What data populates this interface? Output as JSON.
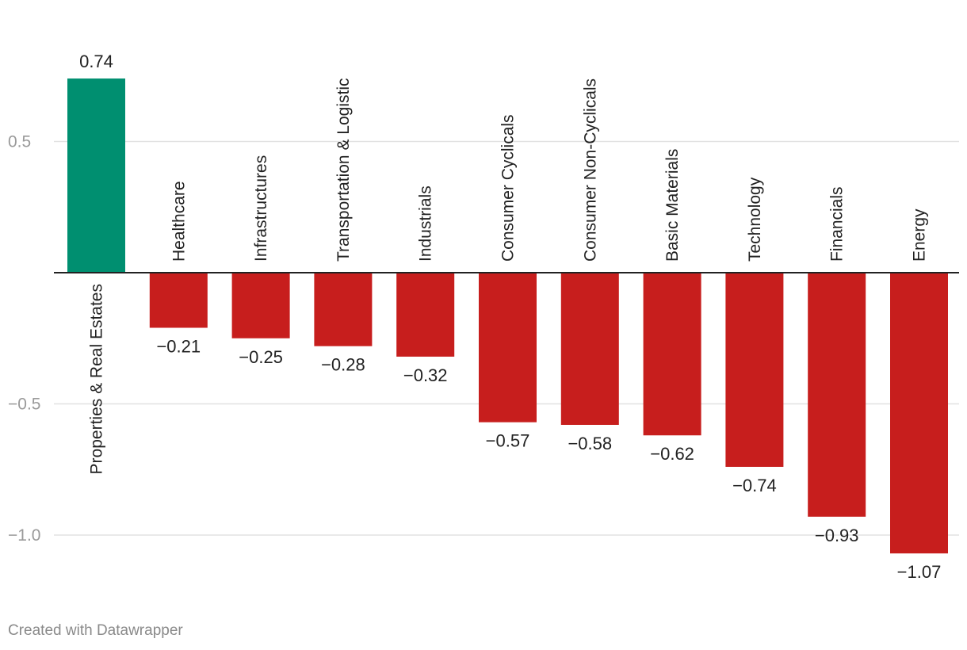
{
  "chart_data": {
    "type": "bar",
    "title": "",
    "xlabel": "",
    "ylabel": "",
    "categories": [
      "Properties & Real Estates",
      "Healthcare",
      "Infrastructures",
      "Transportation & Logistic",
      "Industrials",
      "Consumer Cyclicals",
      "Consumer Non-Cyclicals",
      "Basic Materials",
      "Technology",
      "Financials",
      "Energy"
    ],
    "values": [
      0.74,
      -0.21,
      -0.25,
      -0.28,
      -0.32,
      -0.57,
      -0.58,
      -0.62,
      -0.74,
      -0.93,
      -1.07
    ],
    "value_labels": [
      "0.74",
      "−0.21",
      "−0.25",
      "−0.28",
      "−0.32",
      "−0.57",
      "−0.58",
      "−0.62",
      "−0.74",
      "−0.93",
      "−1.07"
    ],
    "y_ticks": [
      0.5,
      -0.5,
      -1.0
    ],
    "y_tick_labels": [
      "0.5",
      "−0.5",
      "−1.0"
    ],
    "ylim": [
      -1.13,
      0.8
    ],
    "grid": true,
    "legend": "none",
    "colors": {
      "positive": "#008f70",
      "negative": "#c71e1d",
      "grid": "#e2e2e2",
      "baseline": "#222222"
    }
  },
  "footer": {
    "credit": "Created with Datawrapper"
  }
}
